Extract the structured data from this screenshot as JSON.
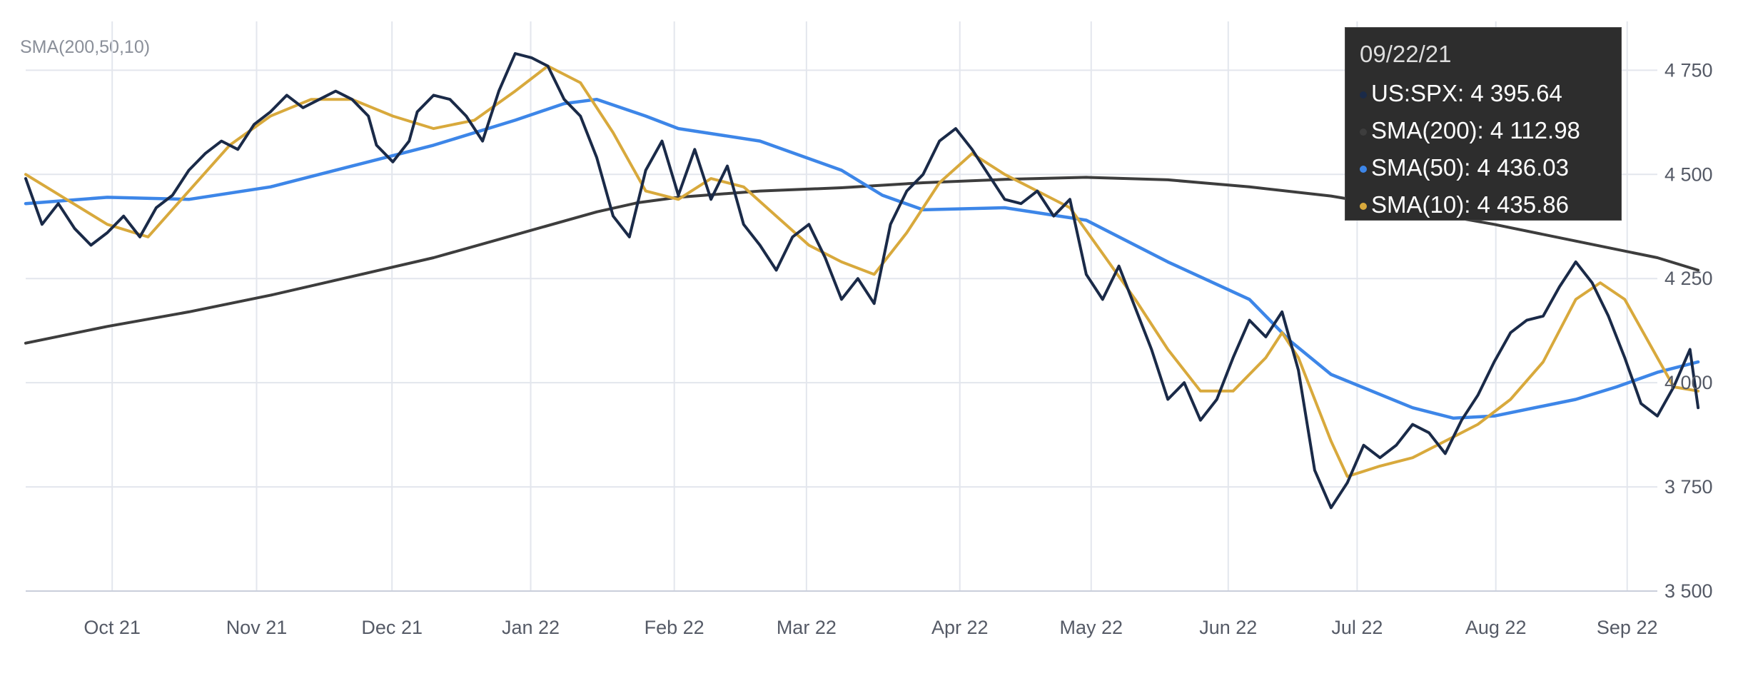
{
  "indicator_label": "SMA(200,50,10)",
  "colors": {
    "spx": "#1a2a48",
    "sma200": "#3d3d3d",
    "sma50": "#3d86e8",
    "sma10": "#d8a93c",
    "grid": "#e3e6ed",
    "axis_text": "#555a66"
  },
  "tooltip": {
    "date": "09/22/21",
    "rows": [
      {
        "label": "US:SPX:",
        "value": "4 395.64",
        "color": "#1a2a48"
      },
      {
        "label": "SMA(200):",
        "value": "4 112.98",
        "color": "#3d3d3d"
      },
      {
        "label": "SMA(50):",
        "value": "4 436.03",
        "color": "#3d86e8"
      },
      {
        "label": "SMA(10):",
        "value": "4 435.86",
        "color": "#d8a93c"
      }
    ]
  },
  "chart_data": {
    "type": "line",
    "x_labels": [
      "Oct 21",
      "Nov 21",
      "Dec 21",
      "Jan 22",
      "Feb 22",
      "Mar 22",
      "Apr 22",
      "May 22",
      "Jun 22",
      "Jul 22",
      "Aug 22",
      "Sep 22"
    ],
    "x_label_positions": [
      0.106,
      0.283,
      0.449,
      0.619,
      0.795,
      0.957,
      1.145,
      1.306,
      1.474,
      1.632,
      1.802,
      1.963
    ],
    "x_range": [
      0.0,
      2.0
    ],
    "y_ticks": [
      "3 500",
      "3 750",
      "4 000",
      "4 250",
      "4 500",
      "4 750"
    ],
    "y_tick_values": [
      3500,
      3750,
      4000,
      4250,
      4500,
      4750
    ],
    "ylim": [
      3500,
      4850
    ],
    "grid": true,
    "series": [
      {
        "name": "US:SPX",
        "key": "spx",
        "points": [
          [
            0.0,
            4490
          ],
          [
            0.02,
            4380
          ],
          [
            0.04,
            4430
          ],
          [
            0.06,
            4370
          ],
          [
            0.08,
            4330
          ],
          [
            0.1,
            4360
          ],
          [
            0.12,
            4400
          ],
          [
            0.14,
            4350
          ],
          [
            0.16,
            4420
          ],
          [
            0.18,
            4450
          ],
          [
            0.2,
            4510
          ],
          [
            0.22,
            4550
          ],
          [
            0.24,
            4580
          ],
          [
            0.26,
            4560
          ],
          [
            0.28,
            4620
          ],
          [
            0.3,
            4650
          ],
          [
            0.32,
            4690
          ],
          [
            0.34,
            4660
          ],
          [
            0.36,
            4680
          ],
          [
            0.38,
            4700
          ],
          [
            0.4,
            4680
          ],
          [
            0.42,
            4640
          ],
          [
            0.43,
            4570
          ],
          [
            0.45,
            4530
          ],
          [
            0.47,
            4580
          ],
          [
            0.48,
            4650
          ],
          [
            0.5,
            4690
          ],
          [
            0.52,
            4680
          ],
          [
            0.54,
            4640
          ],
          [
            0.56,
            4580
          ],
          [
            0.58,
            4700
          ],
          [
            0.6,
            4790
          ],
          [
            0.62,
            4780
          ],
          [
            0.64,
            4760
          ],
          [
            0.66,
            4680
          ],
          [
            0.68,
            4640
          ],
          [
            0.7,
            4540
          ],
          [
            0.72,
            4400
          ],
          [
            0.74,
            4350
          ],
          [
            0.76,
            4510
          ],
          [
            0.78,
            4580
          ],
          [
            0.8,
            4450
          ],
          [
            0.82,
            4560
          ],
          [
            0.84,
            4440
          ],
          [
            0.86,
            4520
          ],
          [
            0.88,
            4380
          ],
          [
            0.9,
            4330
          ],
          [
            0.92,
            4270
          ],
          [
            0.94,
            4350
          ],
          [
            0.96,
            4380
          ],
          [
            0.98,
            4300
          ],
          [
            1.0,
            4200
          ],
          [
            1.02,
            4250
          ],
          [
            1.04,
            4190
          ],
          [
            1.06,
            4380
          ],
          [
            1.08,
            4460
          ],
          [
            1.1,
            4500
          ],
          [
            1.12,
            4580
          ],
          [
            1.14,
            4610
          ],
          [
            1.16,
            4560
          ],
          [
            1.18,
            4500
          ],
          [
            1.2,
            4440
          ],
          [
            1.22,
            4430
          ],
          [
            1.24,
            4460
          ],
          [
            1.26,
            4400
          ],
          [
            1.28,
            4440
          ],
          [
            1.3,
            4260
          ],
          [
            1.32,
            4200
          ],
          [
            1.34,
            4280
          ],
          [
            1.36,
            4180
          ],
          [
            1.38,
            4080
          ],
          [
            1.4,
            3960
          ],
          [
            1.42,
            4000
          ],
          [
            1.44,
            3910
          ],
          [
            1.46,
            3960
          ],
          [
            1.48,
            4060
          ],
          [
            1.5,
            4150
          ],
          [
            1.52,
            4110
          ],
          [
            1.54,
            4170
          ],
          [
            1.56,
            4030
          ],
          [
            1.58,
            3790
          ],
          [
            1.6,
            3700
          ],
          [
            1.62,
            3760
          ],
          [
            1.64,
            3850
          ],
          [
            1.66,
            3820
          ],
          [
            1.68,
            3850
          ],
          [
            1.7,
            3900
          ],
          [
            1.72,
            3880
          ],
          [
            1.74,
            3830
          ],
          [
            1.76,
            3910
          ],
          [
            1.78,
            3970
          ],
          [
            1.8,
            4050
          ],
          [
            1.82,
            4120
          ],
          [
            1.84,
            4150
          ],
          [
            1.86,
            4160
          ],
          [
            1.88,
            4230
          ],
          [
            1.9,
            4290
          ],
          [
            1.92,
            4240
          ],
          [
            1.94,
            4160
          ],
          [
            1.96,
            4060
          ],
          [
            1.98,
            3950
          ],
          [
            2.0,
            3920
          ],
          [
            2.02,
            3990
          ],
          [
            2.04,
            4080
          ],
          [
            2.05,
            3940
          ]
        ]
      },
      {
        "name": "SMA(200)",
        "key": "sma200",
        "points": [
          [
            0.0,
            4095
          ],
          [
            0.1,
            4135
          ],
          [
            0.2,
            4170
          ],
          [
            0.3,
            4210
          ],
          [
            0.4,
            4255
          ],
          [
            0.5,
            4300
          ],
          [
            0.6,
            4355
          ],
          [
            0.7,
            4410
          ],
          [
            0.75,
            4432
          ],
          [
            0.8,
            4445
          ],
          [
            0.9,
            4460
          ],
          [
            1.0,
            4468
          ],
          [
            1.1,
            4480
          ],
          [
            1.2,
            4488
          ],
          [
            1.3,
            4493
          ],
          [
            1.4,
            4487
          ],
          [
            1.5,
            4470
          ],
          [
            1.6,
            4448
          ],
          [
            1.7,
            4415
          ],
          [
            1.8,
            4380
          ],
          [
            1.9,
            4340
          ],
          [
            2.0,
            4300
          ],
          [
            2.05,
            4270
          ]
        ]
      },
      {
        "name": "SMA(50)",
        "key": "sma50",
        "points": [
          [
            0.0,
            4430
          ],
          [
            0.1,
            4445
          ],
          [
            0.2,
            4440
          ],
          [
            0.3,
            4470
          ],
          [
            0.4,
            4520
          ],
          [
            0.5,
            4570
          ],
          [
            0.6,
            4630
          ],
          [
            0.66,
            4670
          ],
          [
            0.7,
            4680
          ],
          [
            0.76,
            4640
          ],
          [
            0.8,
            4610
          ],
          [
            0.9,
            4580
          ],
          [
            1.0,
            4510
          ],
          [
            1.05,
            4450
          ],
          [
            1.1,
            4415
          ],
          [
            1.2,
            4420
          ],
          [
            1.3,
            4390
          ],
          [
            1.4,
            4290
          ],
          [
            1.5,
            4200
          ],
          [
            1.55,
            4100
          ],
          [
            1.6,
            4020
          ],
          [
            1.7,
            3940
          ],
          [
            1.75,
            3915
          ],
          [
            1.8,
            3920
          ],
          [
            1.9,
            3960
          ],
          [
            1.95,
            3990
          ],
          [
            2.0,
            4025
          ],
          [
            2.05,
            4050
          ]
        ]
      },
      {
        "name": "SMA(10)",
        "key": "sma10",
        "points": [
          [
            0.0,
            4500
          ],
          [
            0.05,
            4440
          ],
          [
            0.1,
            4380
          ],
          [
            0.15,
            4350
          ],
          [
            0.2,
            4460
          ],
          [
            0.25,
            4570
          ],
          [
            0.3,
            4640
          ],
          [
            0.35,
            4680
          ],
          [
            0.4,
            4680
          ],
          [
            0.45,
            4640
          ],
          [
            0.5,
            4610
          ],
          [
            0.55,
            4630
          ],
          [
            0.6,
            4700
          ],
          [
            0.64,
            4760
          ],
          [
            0.68,
            4720
          ],
          [
            0.72,
            4600
          ],
          [
            0.76,
            4460
          ],
          [
            0.8,
            4440
          ],
          [
            0.84,
            4490
          ],
          [
            0.88,
            4470
          ],
          [
            0.92,
            4400
          ],
          [
            0.96,
            4330
          ],
          [
            1.0,
            4290
          ],
          [
            1.04,
            4260
          ],
          [
            1.08,
            4360
          ],
          [
            1.12,
            4480
          ],
          [
            1.16,
            4550
          ],
          [
            1.2,
            4500
          ],
          [
            1.24,
            4460
          ],
          [
            1.28,
            4420
          ],
          [
            1.32,
            4310
          ],
          [
            1.36,
            4200
          ],
          [
            1.4,
            4080
          ],
          [
            1.44,
            3980
          ],
          [
            1.48,
            3980
          ],
          [
            1.52,
            4060
          ],
          [
            1.54,
            4120
          ],
          [
            1.56,
            4060
          ],
          [
            1.6,
            3860
          ],
          [
            1.62,
            3775
          ],
          [
            1.66,
            3800
          ],
          [
            1.7,
            3820
          ],
          [
            1.74,
            3860
          ],
          [
            1.78,
            3900
          ],
          [
            1.82,
            3960
          ],
          [
            1.86,
            4050
          ],
          [
            1.9,
            4200
          ],
          [
            1.93,
            4240
          ],
          [
            1.96,
            4200
          ],
          [
            2.0,
            4060
          ],
          [
            2.02,
            3990
          ],
          [
            2.05,
            3980
          ]
        ]
      }
    ]
  }
}
